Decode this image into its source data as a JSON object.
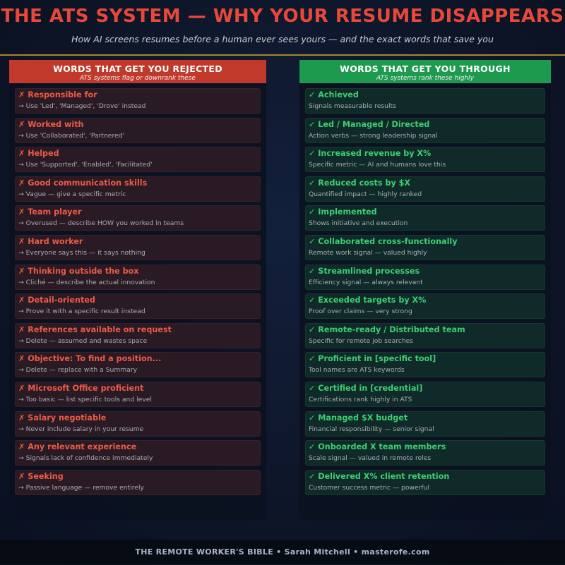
{
  "header": {
    "title": "THE ATS SYSTEM — WHY YOUR RESUME DISAPPEARS",
    "subtitle": "How AI screens resumes before a human ever sees yours — and the exact words that save you"
  },
  "left": {
    "heading": "WORDS THAT GET YOU REJECTED",
    "subheading": "ATS systems flag or downrank these",
    "items": [
      {
        "title": "✗ Responsible for",
        "note": "→ Use 'Led', 'Managed', 'Drove' instead"
      },
      {
        "title": "✗ Worked with",
        "note": "→ Use 'Collaborated', 'Partnered'"
      },
      {
        "title": "✗ Helped",
        "note": "→ Use 'Supported', 'Enabled', 'Facilitated'"
      },
      {
        "title": "✗ Good communication skills",
        "note": "→ Vague — give a specific metric"
      },
      {
        "title": "✗ Team player",
        "note": "→ Overused — describe HOW you worked in teams"
      },
      {
        "title": "✗ Hard worker",
        "note": "→ Everyone says this — it says nothing"
      },
      {
        "title": "✗ Thinking outside the box",
        "note": "→ Cliché — describe the actual innovation"
      },
      {
        "title": "✗ Detail-oriented",
        "note": "→ Prove it with a specific result instead"
      },
      {
        "title": "✗ References available on request",
        "note": "→ Delete — assumed and wastes space"
      },
      {
        "title": "✗ Objective: To find a position...",
        "note": "→ Delete — replace with a Summary"
      },
      {
        "title": "✗ Microsoft Office proficient",
        "note": "→ Too basic — list specific tools and level"
      },
      {
        "title": "✗ Salary negotiable",
        "note": "→ Never include salary in your resume"
      },
      {
        "title": "✗ Any relevant experience",
        "note": "→ Signals lack of confidence immediately"
      },
      {
        "title": "✗ Seeking",
        "note": "→ Passive language — remove entirely"
      }
    ]
  },
  "right": {
    "heading": "WORDS THAT GET YOU THROUGH",
    "subheading": "ATS systems rank these highly",
    "items": [
      {
        "title": "✓ Achieved",
        "note": "Signals measurable results"
      },
      {
        "title": "✓ Led / Managed / Directed",
        "note": "Action verbs — strong leadership signal"
      },
      {
        "title": "✓ Increased revenue by X%",
        "note": "Specific metric — AI and humans love this"
      },
      {
        "title": "✓ Reduced costs by $X",
        "note": "Quantified impact — highly ranked"
      },
      {
        "title": "✓ Implemented",
        "note": "Shows initiative and execution"
      },
      {
        "title": "✓ Collaborated cross-functionally",
        "note": "Remote work signal — valued highly"
      },
      {
        "title": "✓ Streamlined processes",
        "note": "Efficiency signal — always relevant"
      },
      {
        "title": "✓ Exceeded targets by X%",
        "note": "Proof over claims — very strong"
      },
      {
        "title": "✓ Remote-ready / Distributed team",
        "note": "Specific for remote job searches"
      },
      {
        "title": "✓ Proficient in [specific tool]",
        "note": "Tool names are ATS keywords"
      },
      {
        "title": "✓ Certified in [credential]",
        "note": "Certifications rank highly in ATS"
      },
      {
        "title": "✓ Managed $X budget",
        "note": "Financial responsibility — senior signal"
      },
      {
        "title": "✓ Onboarded X team members",
        "note": "Scale signal — valued in remote roles"
      },
      {
        "title": "✓ Delivered X% client retention",
        "note": "Customer success metric — powerful"
      }
    ]
  },
  "footer": "THE REMOTE WORKER'S BIBLE  •  Sarah Mitchell  •  masterofe.com"
}
